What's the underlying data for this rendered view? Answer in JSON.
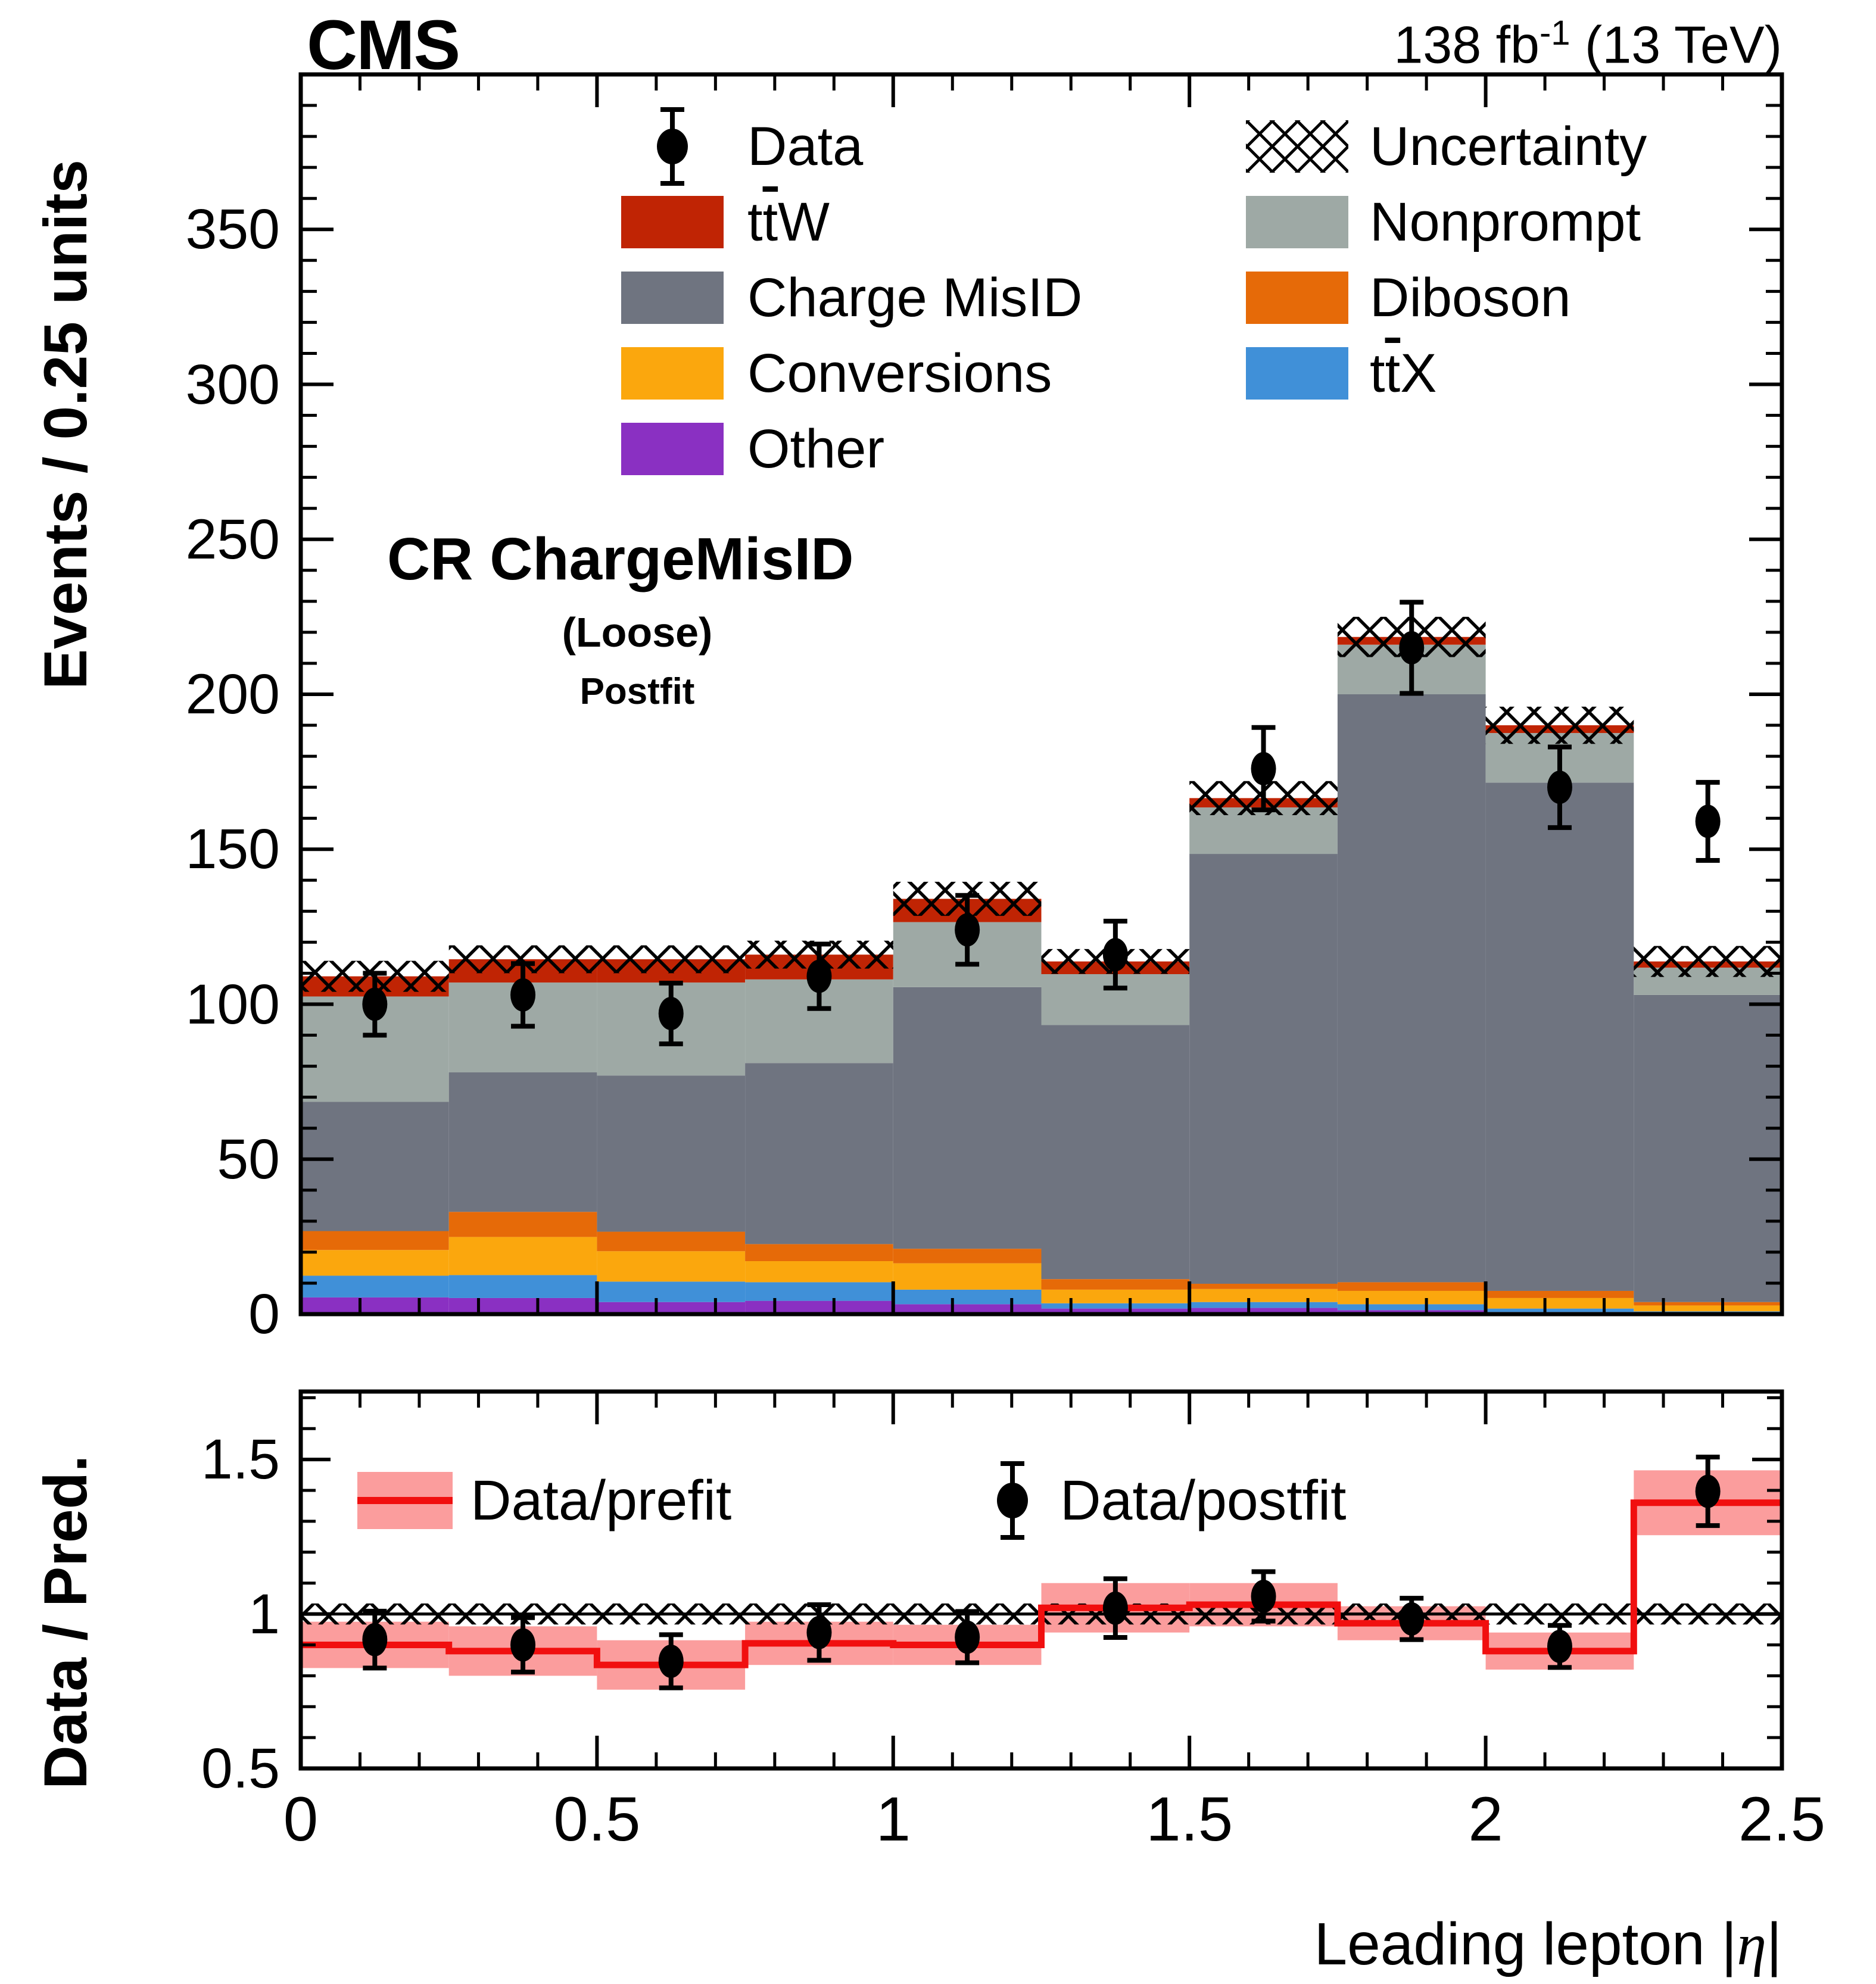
{
  "header": {
    "cms": "CMS",
    "lumi_pre": "138 fb",
    "lumi_sup": "-1",
    "lumi_post": " (13 TeV)"
  },
  "main": {
    "region": "CR ChargeMisID",
    "region_sub1": "(Loose)",
    "region_sub2": "Postfit"
  },
  "axes": {
    "y_title": "Events / 0.25 units",
    "ratio_y_title": "Data / Pred.",
    "x_title_pre": "Leading lepton |",
    "x_title_eta": "η",
    "x_title_post": "|",
    "ytick_values": [
      0,
      50,
      100,
      150,
      200,
      250,
      300,
      350
    ],
    "ytick_labels": [
      "0",
      "50",
      "100",
      "150",
      "200",
      "250",
      "300",
      "350"
    ],
    "ratio_ytick_values": [
      0.5,
      1,
      1.5
    ],
    "ratio_ytick_labels": [
      "0.5",
      "1",
      "1.5"
    ],
    "xtick_values": [
      0,
      0.5,
      1,
      1.5,
      2,
      2.5
    ],
    "xtick_labels": [
      "0",
      "0.5",
      "1",
      "1.5",
      "2",
      "2.5"
    ]
  },
  "legend": {
    "left": [
      {
        "kind": "marker",
        "color": "#000000",
        "label_pre": "Data",
        "label_bar": "",
        "label_post": ""
      },
      {
        "kind": "box",
        "color": "#c02404",
        "label_pre": "t",
        "label_bar": "t",
        "label_post": "W"
      },
      {
        "kind": "box",
        "color": "#6f7480",
        "label_pre": "Charge MisID",
        "label_bar": "",
        "label_post": ""
      },
      {
        "kind": "box",
        "color": "#fba70d",
        "label_pre": "Conversions",
        "label_bar": "",
        "label_post": ""
      },
      {
        "kind": "box",
        "color": "#8a30c2",
        "label_pre": "Other",
        "label_bar": "",
        "label_post": ""
      }
    ],
    "right": [
      {
        "kind": "hatch",
        "color": "#000000",
        "label_pre": "Uncertainty",
        "label_bar": "",
        "label_post": ""
      },
      {
        "kind": "box",
        "color": "#9ea9a5",
        "label_pre": "Nonprompt",
        "label_bar": "",
        "label_post": ""
      },
      {
        "kind": "box",
        "color": "#e66a08",
        "label_pre": "Diboson",
        "label_bar": "",
        "label_post": ""
      },
      {
        "kind": "box",
        "color": "#4090d8",
        "label_pre": "t",
        "label_bar": "t",
        "label_post": "X"
      }
    ]
  },
  "ratio_legend": [
    {
      "kind": "prefit-band",
      "label": "Data/prefit"
    },
    {
      "kind": "marker",
      "label": "Data/postfit"
    }
  ],
  "chart_data": {
    "type": "bar",
    "subtype": "stacked-histogram-with-ratio",
    "title": "CR ChargeMisID (Loose) Postfit",
    "xlabel": "Leading lepton |η|",
    "ylabel": "Events / 0.25 units",
    "ratio_ylabel": "Data / Pred.",
    "xlim": [
      0,
      2.5
    ],
    "ylim": [
      0,
      400
    ],
    "ratio_ylim": [
      0.5,
      1.72
    ],
    "bin_edges": [
      0,
      0.25,
      0.5,
      0.75,
      1.0,
      1.25,
      1.5,
      1.75,
      2.0,
      2.25,
      2.5
    ],
    "series": [
      {
        "name": "Other",
        "color": "#8a30c2",
        "values": [
          5.4,
          5.2,
          3.9,
          4.3,
          3.2,
          1.8,
          2.0,
          1.3,
          0.7,
          0.2
        ]
      },
      {
        "name": "ttX",
        "color": "#4090d8",
        "values": [
          7.0,
          7.4,
          6.6,
          6.0,
          4.7,
          1.7,
          1.9,
          1.9,
          1.1,
          0.7
        ]
      },
      {
        "name": "Conversions",
        "color": "#fba70d",
        "values": [
          8.3,
          12.3,
          9.8,
          6.8,
          8.5,
          4.4,
          4.2,
          4.3,
          3.4,
          1.9
        ]
      },
      {
        "name": "Diboson",
        "color": "#e66a08",
        "values": [
          6.1,
          8.1,
          6.3,
          5.5,
          4.7,
          3.4,
          1.7,
          2.8,
          2.3,
          1.1
        ]
      },
      {
        "name": "Charge MisID",
        "color": "#6f7480",
        "values": [
          41.7,
          45.0,
          50.4,
          58.4,
          84.4,
          82.0,
          138.7,
          189.7,
          164.0,
          99.1
        ]
      },
      {
        "name": "Nonprompt",
        "color": "#9ea9a5",
        "values": [
          34.0,
          29.0,
          30.0,
          27.0,
          21.0,
          16.4,
          15.0,
          16.0,
          16.0,
          8.8
        ]
      },
      {
        "name": "ttW",
        "color": "#c02404",
        "values": [
          6.5,
          7.5,
          7.5,
          8.0,
          7.5,
          4.1,
          3.0,
          2.5,
          2.5,
          2.0
        ]
      }
    ],
    "totals": [
      109.0,
      114.5,
      114.5,
      116.0,
      134.0,
      113.8,
      166.5,
      218.5,
      190.0,
      113.8
    ],
    "uncertainty_halfwidth": [
      5,
      4.5,
      4.5,
      4.5,
      5.5,
      4,
      5.5,
      6.5,
      6,
      5
    ],
    "data_points": {
      "values": [
        100,
        103,
        97,
        109,
        124,
        116,
        176,
        215,
        170,
        159
      ],
      "errors": [
        10.0,
        10.1,
        9.8,
        10.4,
        11.1,
        10.8,
        13.3,
        14.7,
        13.0,
        12.6
      ]
    },
    "ratio": {
      "prefit": [
        0.9,
        0.88,
        0.835,
        0.905,
        0.9,
        1.02,
        1.03,
        0.97,
        0.88,
        1.36
      ],
      "prefit_band_halfwidth": [
        0.075,
        0.08,
        0.08,
        0.07,
        0.065,
        0.08,
        0.07,
        0.055,
        0.06,
        0.105
      ],
      "postfit": [
        0.917,
        0.9,
        0.847,
        0.94,
        0.925,
        1.019,
        1.057,
        0.984,
        0.895,
        1.397
      ],
      "postfit_err": [
        0.092,
        0.088,
        0.086,
        0.09,
        0.083,
        0.095,
        0.08,
        0.067,
        0.068,
        0.111
      ],
      "unc_band_halfwidth": 0.034,
      "line_color": "#f10f0f",
      "band_color": "#fb9d9d"
    },
    "marker_color": "#000000",
    "legend_position": "top-inside-two-columns",
    "grid": false
  }
}
